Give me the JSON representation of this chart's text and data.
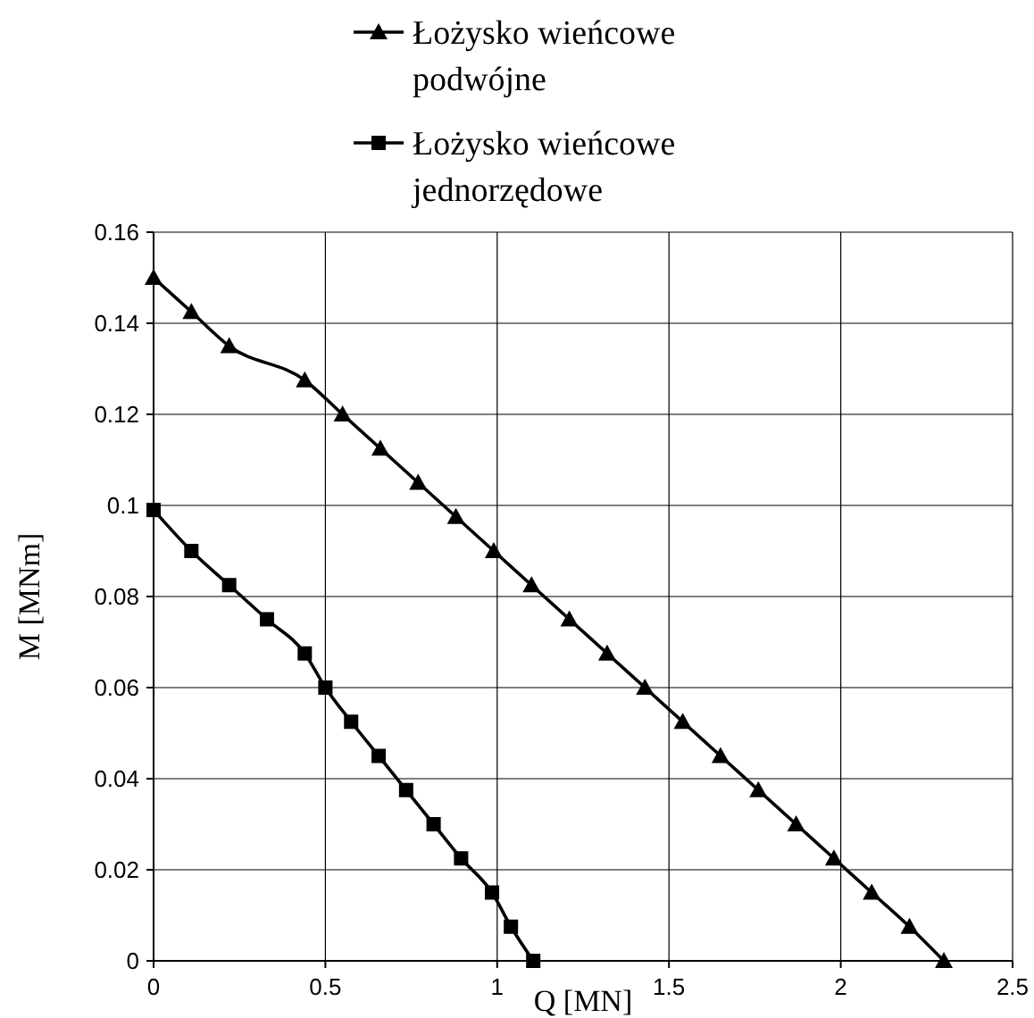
{
  "chart_data": {
    "type": "line",
    "xlabel": "Q [MN]",
    "ylabel": "M [MNm]",
    "xlim": [
      0,
      2.5
    ],
    "ylim": [
      0,
      0.16
    ],
    "xticks": [
      0,
      0.5,
      1,
      1.5,
      2,
      2.5
    ],
    "yticks": [
      0,
      0.02,
      0.04,
      0.06,
      0.08,
      0.1,
      0.12,
      0.14,
      0.16
    ],
    "grid": true,
    "legend": "top",
    "series": [
      {
        "name": "Łożysko wieńcowe podwójne",
        "color": "#000000",
        "marker": "triangle",
        "x": [
          0,
          0.11,
          0.22,
          0.44,
          0.55,
          0.66,
          0.77,
          0.88,
          0.99,
          1.1,
          1.21,
          1.32,
          1.43,
          1.54,
          1.65,
          1.76,
          1.87,
          1.98,
          2.09,
          2.2,
          2.3
        ],
        "values": [
          0.15,
          0.1425,
          0.135,
          0.1275,
          0.12,
          0.1125,
          0.105,
          0.0975,
          0.09,
          0.0825,
          0.075,
          0.0675,
          0.06,
          0.0525,
          0.045,
          0.0375,
          0.03,
          0.0225,
          0.015,
          0.0075,
          0
        ]
      },
      {
        "name": "Łożysko wieńcowe jednorzędowe",
        "color": "#000000",
        "marker": "square",
        "x": [
          0,
          0.11,
          0.22,
          0.33,
          0.44,
          0.5,
          0.575,
          0.655,
          0.735,
          0.815,
          0.895,
          0.985,
          1.04,
          1.105
        ],
        "values": [
          0.099,
          0.09,
          0.0825,
          0.075,
          0.0675,
          0.06,
          0.0525,
          0.045,
          0.0375,
          0.03,
          0.0225,
          0.015,
          0.0075,
          0
        ]
      }
    ]
  }
}
